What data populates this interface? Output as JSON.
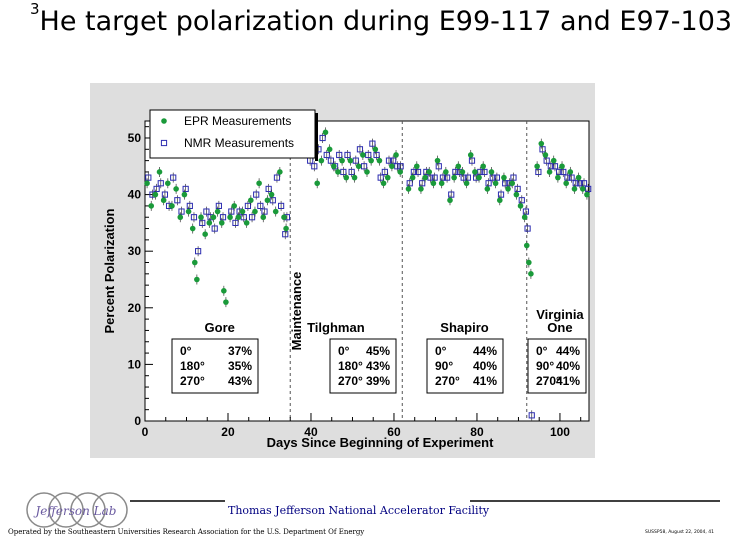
{
  "slide": {
    "title_sup": "3",
    "title_text": "He target polarization during E99-117 and E97-103"
  },
  "footer": {
    "lab_name": "Thomas Jefferson National Accelerator Facility",
    "operator": "Operated by the Southeastern Universities Research Association for the U.S. Department Of Energy",
    "conference": "SUSSP58, August 22, 2004, 41",
    "logo_text": "Jefferson Lab"
  },
  "colors": {
    "epr": "#1a9a3a",
    "nmr": "#2c2cb0",
    "panel": "#dedede",
    "plot_bg": "#ffffff",
    "divider": "#555555"
  },
  "chart_data": {
    "type": "scatter",
    "title": "",
    "xlabel": "Days Since Beginning of Experiment",
    "ylabel": "Percent Polarization",
    "xlim": [
      0,
      107
    ],
    "ylim": [
      0,
      53
    ],
    "xticks": [
      0,
      20,
      40,
      60,
      80,
      100
    ],
    "yticks": [
      0,
      10,
      20,
      30,
      40,
      50
    ],
    "legend": {
      "position": "top-left",
      "entries": [
        {
          "label": "EPR Measurements",
          "marker": "filled-circle"
        },
        {
          "label": "NMR Measurements",
          "marker": "open-square"
        }
      ]
    },
    "dividers": [
      35,
      62,
      92
    ],
    "maintenance_label": "Maintenance",
    "maintenance_x": 39,
    "regions": [
      {
        "name": "Gore",
        "x": 18,
        "angles": [
          "0°",
          "180°",
          "270°"
        ],
        "pols": [
          "37%",
          "35%",
          "43%"
        ]
      },
      {
        "name": "Tilghman",
        "x": 46,
        "angles": [
          "0°",
          "180°",
          "270°"
        ],
        "pols": [
          "45%",
          "43%",
          "39%"
        ]
      },
      {
        "name": "Shapiro",
        "x": 77,
        "angles": [
          "0°",
          "90°",
          "270°"
        ],
        "pols": [
          "44%",
          "40%",
          "41%"
        ]
      },
      {
        "name": "Virginia One",
        "x": 100,
        "angles": [
          "0°",
          "90°",
          "270°"
        ],
        "pols": [
          "44%",
          "40%",
          "41%"
        ]
      }
    ],
    "series": [
      {
        "name": "EPR Measurements",
        "points": [
          [
            0.5,
            42
          ],
          [
            1.5,
            38
          ],
          [
            2.5,
            40
          ],
          [
            3.5,
            44
          ],
          [
            4.5,
            39
          ],
          [
            5.5,
            42
          ],
          [
            6.5,
            38
          ],
          [
            7.5,
            41
          ],
          [
            8.5,
            36
          ],
          [
            9.5,
            40
          ],
          [
            10.5,
            37
          ],
          [
            11.5,
            34
          ],
          [
            12,
            28
          ],
          [
            12.5,
            25
          ],
          [
            13.5,
            36
          ],
          [
            14.5,
            33
          ],
          [
            15.5,
            35
          ],
          [
            16.5,
            36
          ],
          [
            17.5,
            37
          ],
          [
            18.5,
            35
          ],
          [
            19,
            23
          ],
          [
            19.5,
            21
          ],
          [
            20.5,
            36
          ],
          [
            21.5,
            38
          ],
          [
            22.5,
            36
          ],
          [
            23.5,
            37
          ],
          [
            24.5,
            35
          ],
          [
            25.5,
            39
          ],
          [
            26.5,
            37
          ],
          [
            27.5,
            42
          ],
          [
            28.5,
            36
          ],
          [
            29.5,
            39
          ],
          [
            30.5,
            40
          ],
          [
            31.5,
            37
          ],
          [
            32.5,
            44
          ],
          [
            33.5,
            36
          ],
          [
            34,
            34
          ],
          [
            40.5,
            47
          ],
          [
            41.5,
            42
          ],
          [
            42.5,
            46
          ],
          [
            43.5,
            51
          ],
          [
            44.5,
            48
          ],
          [
            45.5,
            45
          ],
          [
            46.5,
            44
          ],
          [
            47.5,
            46
          ],
          [
            48.5,
            43
          ],
          [
            49.5,
            46
          ],
          [
            50.5,
            43
          ],
          [
            51.5,
            45
          ],
          [
            52.5,
            47
          ],
          [
            53.5,
            44
          ],
          [
            54.5,
            46
          ],
          [
            55.5,
            48
          ],
          [
            56.5,
            46
          ],
          [
            57.5,
            42
          ],
          [
            58.5,
            43
          ],
          [
            59.5,
            45
          ],
          [
            60.5,
            47
          ],
          [
            61.5,
            44
          ],
          [
            63.5,
            41
          ],
          [
            64.5,
            43
          ],
          [
            65.5,
            45
          ],
          [
            66.5,
            41
          ],
          [
            67.5,
            43
          ],
          [
            68.5,
            44
          ],
          [
            69.5,
            42
          ],
          [
            70.5,
            46
          ],
          [
            71.5,
            42
          ],
          [
            72.5,
            44
          ],
          [
            73.5,
            39
          ],
          [
            74.5,
            43
          ],
          [
            75.5,
            45
          ],
          [
            76.5,
            44
          ],
          [
            77.5,
            42
          ],
          [
            78.5,
            47
          ],
          [
            79.5,
            44
          ],
          [
            80.5,
            43
          ],
          [
            81.5,
            45
          ],
          [
            82.5,
            41
          ],
          [
            83.5,
            44
          ],
          [
            84.5,
            42
          ],
          [
            85.5,
            39
          ],
          [
            86.5,
            43
          ],
          [
            87.5,
            41
          ],
          [
            88.5,
            42
          ],
          [
            89.5,
            40
          ],
          [
            90.5,
            38
          ],
          [
            91.5,
            36
          ],
          [
            92,
            31
          ],
          [
            92.5,
            28
          ],
          [
            93,
            26
          ],
          [
            94.5,
            45
          ],
          [
            95.5,
            49
          ],
          [
            96.5,
            47
          ],
          [
            97.5,
            44
          ],
          [
            98.5,
            46
          ],
          [
            99.5,
            43
          ],
          [
            100.5,
            45
          ],
          [
            101.5,
            42
          ],
          [
            102.5,
            44
          ],
          [
            103.5,
            41
          ],
          [
            104.5,
            43
          ],
          [
            105.5,
            41
          ],
          [
            106.5,
            40
          ]
        ]
      },
      {
        "name": "NMR Measurements",
        "points": [
          [
            0.8,
            43
          ],
          [
            1.8,
            40
          ],
          [
            2.8,
            41
          ],
          [
            3.8,
            42
          ],
          [
            4.8,
            40
          ],
          [
            5.8,
            38
          ],
          [
            6.8,
            43
          ],
          [
            7.8,
            39
          ],
          [
            8.8,
            37
          ],
          [
            9.8,
            41
          ],
          [
            10.8,
            38
          ],
          [
            11.8,
            36
          ],
          [
            12.8,
            30
          ],
          [
            13.8,
            35
          ],
          [
            14.8,
            37
          ],
          [
            15.8,
            36
          ],
          [
            16.8,
            34
          ],
          [
            17.8,
            38
          ],
          [
            18.8,
            36
          ],
          [
            20.8,
            37
          ],
          [
            21.8,
            35
          ],
          [
            22.8,
            37
          ],
          [
            23.8,
            36
          ],
          [
            24.8,
            38
          ],
          [
            25.8,
            36
          ],
          [
            26.8,
            40
          ],
          [
            27.8,
            38
          ],
          [
            28.8,
            37
          ],
          [
            29.8,
            41
          ],
          [
            30.8,
            39
          ],
          [
            31.8,
            43
          ],
          [
            32.8,
            38
          ],
          [
            33.8,
            33
          ],
          [
            34.2,
            36
          ],
          [
            39.8,
            46
          ],
          [
            40.8,
            45
          ],
          [
            41.8,
            48
          ],
          [
            42.8,
            50
          ],
          [
            43.8,
            47
          ],
          [
            44.8,
            46
          ],
          [
            45.8,
            45
          ],
          [
            46.8,
            47
          ],
          [
            47.8,
            44
          ],
          [
            48.8,
            47
          ],
          [
            49.8,
            44
          ],
          [
            50.8,
            46
          ],
          [
            51.8,
            48
          ],
          [
            52.8,
            45
          ],
          [
            53.8,
            47
          ],
          [
            54.8,
            49
          ],
          [
            55.8,
            47
          ],
          [
            56.8,
            43
          ],
          [
            57.8,
            44
          ],
          [
            58.8,
            46
          ],
          [
            59.8,
            46
          ],
          [
            60.8,
            45
          ],
          [
            61.6,
            45
          ],
          [
            63.8,
            42
          ],
          [
            64.8,
            44
          ],
          [
            65.8,
            44
          ],
          [
            66.8,
            42
          ],
          [
            67.8,
            44
          ],
          [
            68.8,
            43
          ],
          [
            69.8,
            43
          ],
          [
            70.8,
            45
          ],
          [
            71.8,
            43
          ],
          [
            72.8,
            43
          ],
          [
            73.8,
            40
          ],
          [
            74.8,
            44
          ],
          [
            75.8,
            44
          ],
          [
            76.8,
            43
          ],
          [
            77.8,
            43
          ],
          [
            78.8,
            46
          ],
          [
            79.8,
            43
          ],
          [
            80.8,
            44
          ],
          [
            81.8,
            44
          ],
          [
            82.8,
            42
          ],
          [
            83.8,
            43
          ],
          [
            84.8,
            43
          ],
          [
            85.8,
            40
          ],
          [
            86.8,
            42
          ],
          [
            87.8,
            42
          ],
          [
            88.8,
            43
          ],
          [
            89.8,
            41
          ],
          [
            90.8,
            39
          ],
          [
            91.8,
            37
          ],
          [
            92.2,
            34
          ],
          [
            93.2,
            1
          ],
          [
            94.8,
            44
          ],
          [
            95.8,
            48
          ],
          [
            96.8,
            46
          ],
          [
            97.8,
            45
          ],
          [
            98.8,
            45
          ],
          [
            99.8,
            44
          ],
          [
            100.8,
            44
          ],
          [
            101.8,
            43
          ],
          [
            102.8,
            43
          ],
          [
            103.8,
            42
          ],
          [
            104.8,
            42
          ],
          [
            105.8,
            42
          ],
          [
            106.8,
            41
          ]
        ]
      }
    ]
  }
}
